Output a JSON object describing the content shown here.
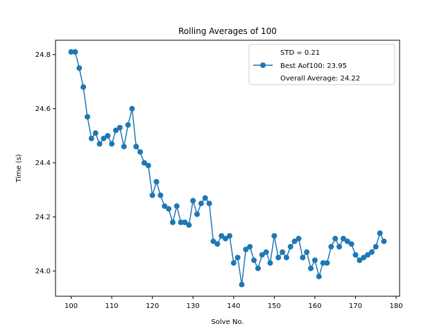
{
  "chart_data": {
    "type": "line",
    "title": "Rolling Averages of 100",
    "xlabel": "Solve No.",
    "ylabel": "Time (s)",
    "xlim": [
      96.15,
      180.85
    ],
    "ylim": [
      23.907,
      24.853
    ],
    "xticks": [
      100,
      110,
      120,
      130,
      140,
      150,
      160,
      170,
      180
    ],
    "yticks": [
      24.0,
      24.2,
      24.4,
      24.6,
      24.8
    ],
    "xtick_labels": [
      "100",
      "110",
      "120",
      "130",
      "140",
      "150",
      "160",
      "170",
      "180"
    ],
    "ytick_labels": [
      "24.0",
      "24.2",
      "24.4",
      "24.6",
      "24.8"
    ],
    "grid": false,
    "legend_position": "upper right",
    "legend": [
      "STD = 0.21",
      "Best Aof100: 23.95",
      "Overall Average: 24.22"
    ],
    "series": [
      {
        "color": "#1f77b4",
        "marker": "circle",
        "x": [
          100,
          101,
          102,
          103,
          104,
          105,
          106,
          107,
          108,
          109,
          110,
          111,
          112,
          113,
          114,
          115,
          116,
          117,
          118,
          119,
          120,
          121,
          122,
          123,
          124,
          125,
          126,
          127,
          128,
          129,
          130,
          131,
          132,
          133,
          134,
          135,
          136,
          137,
          138,
          139,
          140,
          141,
          142,
          143,
          144,
          145,
          146,
          147,
          148,
          149,
          150,
          151,
          152,
          153,
          154,
          155,
          156,
          157,
          158,
          159,
          160,
          161,
          162,
          163,
          164,
          165,
          166,
          167,
          168,
          169,
          170,
          171,
          172,
          173,
          174,
          175,
          176,
          177
        ],
        "y": [
          24.81,
          24.81,
          24.75,
          24.68,
          24.57,
          24.49,
          24.51,
          24.47,
          24.49,
          24.5,
          24.47,
          24.52,
          24.53,
          24.46,
          24.54,
          24.6,
          24.46,
          24.44,
          24.4,
          24.39,
          24.28,
          24.33,
          24.28,
          24.24,
          24.23,
          24.18,
          24.24,
          24.18,
          24.18,
          24.17,
          24.26,
          24.21,
          24.25,
          24.27,
          24.25,
          24.11,
          24.1,
          24.13,
          24.12,
          24.13,
          24.03,
          24.05,
          23.95,
          24.08,
          24.09,
          24.04,
          24.01,
          24.06,
          24.07,
          24.03,
          24.13,
          24.05,
          24.07,
          24.05,
          24.09,
          24.11,
          24.12,
          24.05,
          24.07,
          24.01,
          24.04,
          23.98,
          24.03,
          24.03,
          24.09,
          24.12,
          24.09,
          24.12,
          24.11,
          24.1,
          24.06,
          24.04,
          24.05,
          24.06,
          24.07,
          24.09,
          24.14,
          24.11
        ]
      }
    ]
  }
}
